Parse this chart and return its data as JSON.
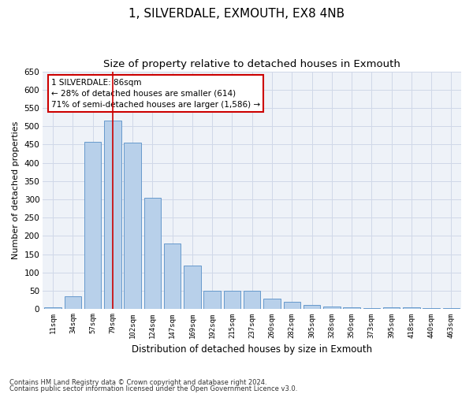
{
  "title": "1, SILVERDALE, EXMOUTH, EX8 4NB",
  "subtitle": "Size of property relative to detached houses in Exmouth",
  "xlabel": "Distribution of detached houses by size in Exmouth",
  "ylabel": "Number of detached properties",
  "categories": [
    "11sqm",
    "34sqm",
    "57sqm",
    "79sqm",
    "102sqm",
    "124sqm",
    "147sqm",
    "169sqm",
    "192sqm",
    "215sqm",
    "237sqm",
    "260sqm",
    "282sqm",
    "305sqm",
    "328sqm",
    "350sqm",
    "373sqm",
    "395sqm",
    "418sqm",
    "440sqm",
    "463sqm"
  ],
  "values": [
    5,
    35,
    457,
    515,
    455,
    305,
    180,
    118,
    50,
    50,
    50,
    28,
    20,
    12,
    8,
    5,
    3,
    5,
    5,
    3,
    3
  ],
  "bar_color": "#b8d0ea",
  "bar_edge_color": "#6699cc",
  "red_line_x": 3.0,
  "annotation_title": "1 SILVERDALE: 86sqm",
  "annotation_line1": "← 28% of detached houses are smaller (614)",
  "annotation_line2": "71% of semi-detached houses are larger (1,586) →",
  "ylim": [
    0,
    650
  ],
  "yticks": [
    0,
    50,
    100,
    150,
    200,
    250,
    300,
    350,
    400,
    450,
    500,
    550,
    600,
    650
  ],
  "footnote1": "Contains HM Land Registry data © Crown copyright and database right 2024.",
  "footnote2": "Contains public sector information licensed under the Open Government Licence v3.0.",
  "bg_color": "#eef2f8",
  "title_fontsize": 11,
  "subtitle_fontsize": 9.5,
  "annotation_box_color": "#ffffff",
  "annotation_box_edge": "#cc0000",
  "grid_color": "#d0d8e8"
}
